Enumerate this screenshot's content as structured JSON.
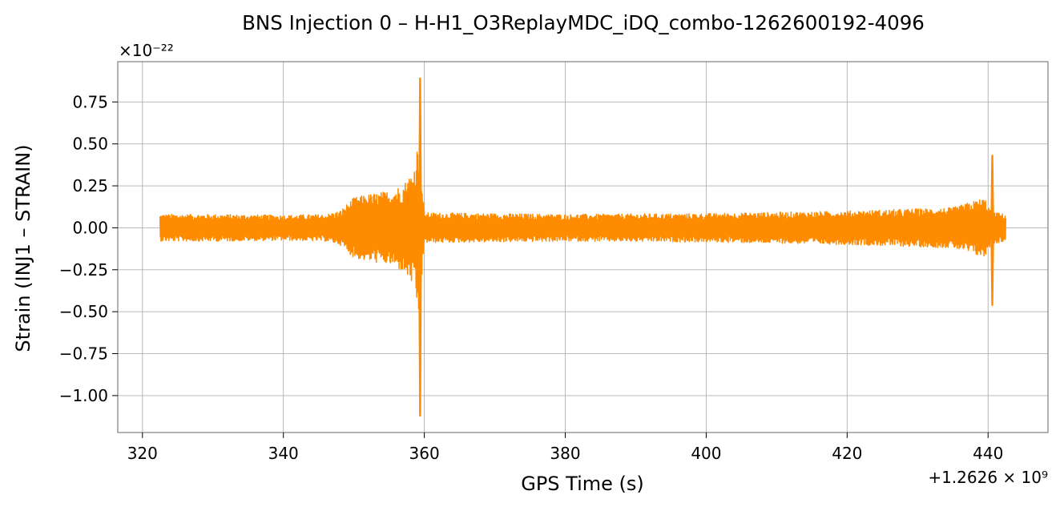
{
  "chart_data": {
    "type": "line",
    "title": "BNS Injection 0 – H-H1_O3ReplayMDC_iDQ_combo-1262600192-4096",
    "xlabel": "GPS Time (s)",
    "ylabel": "Strain (INJ1 – STRAIN)",
    "x_offset_label": "+1.2626 × 10⁹",
    "y_scale_label": "×10⁻²²",
    "x_ticks": [
      320,
      340,
      360,
      380,
      400,
      420,
      440
    ],
    "x_tick_labels": [
      "320",
      "340",
      "360",
      "380",
      "400",
      "420",
      "440"
    ],
    "y_ticks": [
      0.75,
      0.5,
      0.25,
      0.0,
      -0.25,
      -0.5,
      -0.75,
      -1.0
    ],
    "y_tick_labels": [
      "0.75",
      "0.50",
      "0.25",
      "0.00",
      "−0.25",
      "−0.50",
      "−0.75",
      "−1.00"
    ],
    "xlim": [
      316.5,
      448.5
    ],
    "ylim": [
      -1.22,
      0.99
    ],
    "grid": true,
    "series": [
      {
        "color": "#ff8c00",
        "x_range": [
          322.5,
          442.5
        ],
        "envelope": [
          {
            "x": 322.5,
            "amp": 0.08
          },
          {
            "x": 330,
            "amp": 0.08
          },
          {
            "x": 340,
            "amp": 0.075
          },
          {
            "x": 346,
            "amp": 0.08
          },
          {
            "x": 348,
            "amp": 0.1
          },
          {
            "x": 350,
            "amp": 0.18
          },
          {
            "x": 352,
            "amp": 0.2
          },
          {
            "x": 355,
            "amp": 0.22
          },
          {
            "x": 357,
            "amp": 0.26
          },
          {
            "x": 358.5,
            "amp": 0.35
          },
          {
            "x": 359.2,
            "amp": 0.55
          },
          {
            "x": 360,
            "amp": 0.09
          },
          {
            "x": 370,
            "amp": 0.085
          },
          {
            "x": 380,
            "amp": 0.08
          },
          {
            "x": 400,
            "amp": 0.085
          },
          {
            "x": 420,
            "amp": 0.1
          },
          {
            "x": 435,
            "amp": 0.12
          },
          {
            "x": 439.5,
            "amp": 0.18
          },
          {
            "x": 440.4,
            "amp": 0.1
          },
          {
            "x": 442.5,
            "amp": 0.08
          }
        ],
        "peaks": [
          {
            "x": 359.4,
            "max": 0.89,
            "min": -1.12
          },
          {
            "x": 440.6,
            "max": 0.43,
            "min": -0.46
          }
        ]
      }
    ]
  }
}
